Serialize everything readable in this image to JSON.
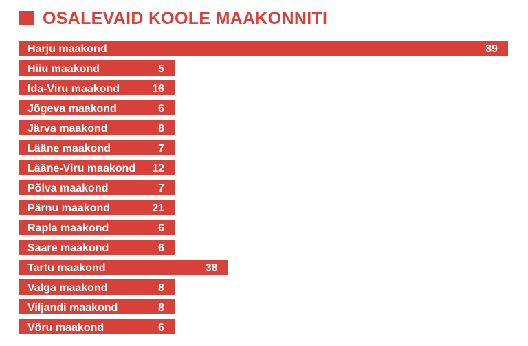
{
  "chart_data": {
    "type": "bar",
    "orientation": "horizontal",
    "title": "OSALEVAID KOOLE MAAKONNITI",
    "categories": [
      "Harju maakond",
      "Hiiu maakond",
      "Ida-Viru maakond",
      "Jõgeva maakond",
      "Järva maakond",
      "Lääne maakond",
      "Lääne-Viru maakond",
      "Põlva maakond",
      "Pärnu maakond",
      "Rapla maakond",
      "Saare maakond",
      "Tartu maakond",
      "Valga maakond",
      "Viljandi maakond",
      "Võru maakond"
    ],
    "values": [
      89,
      5,
      16,
      6,
      8,
      7,
      12,
      7,
      21,
      6,
      6,
      38,
      8,
      8,
      6
    ],
    "xlabel": "",
    "ylabel": "",
    "grid": false,
    "legend": "none",
    "colors": {
      "bar": "#d8413a",
      "label": "#ffffff",
      "title": "#d8413a"
    }
  }
}
